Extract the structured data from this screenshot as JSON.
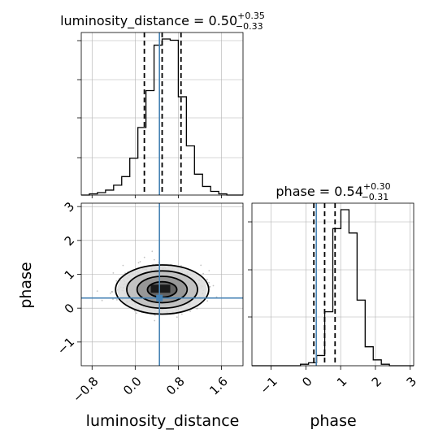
{
  "chart_data": {
    "type": "corner",
    "parameters": [
      "luminosity_distance",
      "phase"
    ],
    "titles": [
      {
        "param": "luminosity_distance",
        "label": "luminosity_distance = 0.50",
        "plus": "+0.35",
        "minus": "−0.33"
      },
      {
        "param": "phase",
        "label": "phase = 0.54",
        "plus": "+0.30",
        "minus": "−0.31"
      }
    ],
    "axis_labels": {
      "x1": "luminosity_distance",
      "x2": "phase",
      "y2": "phase"
    },
    "ticks": {
      "luminosity_distance": [
        "−0.8",
        "0.0",
        "0.8",
        "1.6"
      ],
      "phase_x": [
        "−1",
        "0",
        "1",
        "2",
        "3"
      ],
      "phase_y": [
        "−1",
        "0",
        "1",
        "2",
        "3"
      ]
    },
    "truth": {
      "luminosity_distance": 0.45,
      "phase": 0.3
    },
    "quantiles": {
      "luminosity_distance": [
        0.17,
        0.5,
        0.85
      ],
      "phase": [
        0.23,
        0.54,
        0.84
      ]
    },
    "hist_luminosity_distance": {
      "range": [
        -1.0,
        2.0
      ],
      "counts": [
        0,
        1,
        2,
        4,
        8,
        15,
        30,
        55,
        85,
        122,
        127,
        126,
        80,
        40,
        17,
        7,
        3,
        1,
        0,
        0
      ]
    },
    "hist_phase": {
      "range": [
        -1.55,
        3.1
      ],
      "counts": [
        0,
        0,
        0,
        0,
        0,
        0,
        1,
        2,
        7,
        37,
        94,
        107,
        91,
        45,
        13,
        4,
        1,
        0,
        0,
        0
      ]
    },
    "density_2d": {
      "center": [
        0.5,
        0.55
      ],
      "x_sigma": 0.32,
      "y_sigma": 0.28
    },
    "style": {
      "truth_color": "#4682b4",
      "line_color": "#000000",
      "grid_color": "#b0b0b0",
      "grid": true
    }
  }
}
